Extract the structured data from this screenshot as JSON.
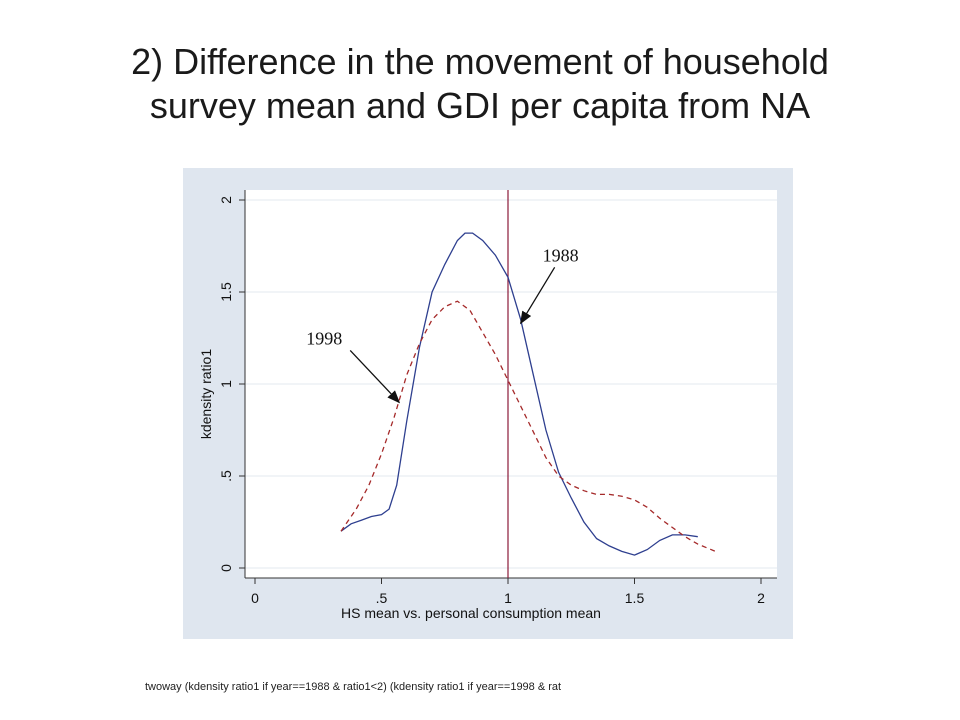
{
  "slide": {
    "title_line1": "2) Difference in the movement of household",
    "title_line2": "survey mean and GDI per capita from NA",
    "footer": "twoway (kdensity ratio1  if year==1988 & ratio1<2) (kdensity ratio1 if year==1998 & rat"
  },
  "chart_data": {
    "type": "line",
    "xlabel": "HS mean vs. personal consumption mean",
    "ylabel": "kdensity ratio1",
    "xlim": [
      0,
      2
    ],
    "ylim": [
      0,
      2
    ],
    "x_ticks": [
      "0",
      ".5",
      "1",
      "1.5",
      "2"
    ],
    "y_ticks": [
      "0",
      ".5",
      "1",
      "1.5",
      "2"
    ],
    "grid": true,
    "vline_x": 1,
    "series": [
      {
        "name": "1988",
        "style": "solid",
        "color": "#2e3f8f",
        "x": [
          0.34,
          0.38,
          0.42,
          0.46,
          0.5,
          0.53,
          0.56,
          0.6,
          0.65,
          0.7,
          0.75,
          0.8,
          0.83,
          0.86,
          0.9,
          0.95,
          1.0,
          1.05,
          1.1,
          1.15,
          1.2,
          1.25,
          1.3,
          1.35,
          1.4,
          1.45,
          1.5,
          1.55,
          1.6,
          1.65,
          1.7,
          1.75
        ],
        "y": [
          0.2,
          0.24,
          0.26,
          0.28,
          0.29,
          0.32,
          0.45,
          0.8,
          1.2,
          1.5,
          1.65,
          1.78,
          1.82,
          1.82,
          1.78,
          1.7,
          1.58,
          1.35,
          1.05,
          0.75,
          0.52,
          0.38,
          0.25,
          0.16,
          0.12,
          0.09,
          0.07,
          0.1,
          0.15,
          0.18,
          0.18,
          0.17
        ]
      },
      {
        "name": "1998",
        "style": "dashed",
        "color": "#a52a2a",
        "x": [
          0.34,
          0.4,
          0.45,
          0.5,
          0.55,
          0.6,
          0.65,
          0.7,
          0.75,
          0.8,
          0.85,
          0.9,
          0.95,
          1.0,
          1.05,
          1.1,
          1.15,
          1.2,
          1.25,
          1.3,
          1.35,
          1.4,
          1.45,
          1.5,
          1.55,
          1.6,
          1.65,
          1.7,
          1.75,
          1.82
        ],
        "y": [
          0.2,
          0.32,
          0.45,
          0.62,
          0.82,
          1.05,
          1.22,
          1.35,
          1.42,
          1.45,
          1.4,
          1.28,
          1.16,
          1.02,
          0.88,
          0.74,
          0.6,
          0.5,
          0.45,
          0.42,
          0.4,
          0.4,
          0.39,
          0.37,
          0.33,
          0.27,
          0.22,
          0.17,
          0.13,
          0.09
        ]
      }
    ],
    "annotations": [
      {
        "label": "1988",
        "target_x": 1.05,
        "target_y": 1.33
      },
      {
        "label": "1998",
        "target_x": 0.57,
        "target_y": 0.9
      }
    ]
  }
}
